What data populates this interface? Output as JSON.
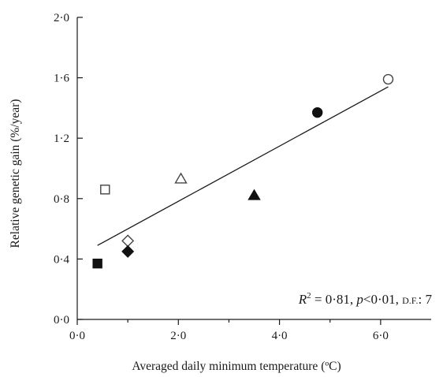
{
  "chart_data": {
    "type": "scatter",
    "xlabel": "Averaged daily minimum temperature (ºC)",
    "ylabel": "Relative genetic gain (%/year)",
    "xlim": [
      0,
      7
    ],
    "ylim": [
      0,
      2
    ],
    "xticks": [
      "0·0",
      "2·0",
      "4·0",
      "6·0"
    ],
    "xtick_values": [
      0,
      2,
      4,
      6
    ],
    "yticks": [
      "0·0",
      "0·4",
      "0·8",
      "1·2",
      "1·6",
      "2·0"
    ],
    "ytick_values": [
      0,
      0.4,
      0.8,
      1.2,
      1.6,
      2.0
    ],
    "points": [
      {
        "x": 0.4,
        "y": 0.37,
        "marker": "square",
        "fill": "filled"
      },
      {
        "x": 0.55,
        "y": 0.86,
        "marker": "square",
        "fill": "open"
      },
      {
        "x": 1.0,
        "y": 0.52,
        "marker": "diamond",
        "fill": "open"
      },
      {
        "x": 1.0,
        "y": 0.45,
        "marker": "diamond",
        "fill": "filled"
      },
      {
        "x": 2.05,
        "y": 0.93,
        "marker": "triangle",
        "fill": "open"
      },
      {
        "x": 3.5,
        "y": 0.82,
        "marker": "triangle",
        "fill": "filled"
      },
      {
        "x": 4.75,
        "y": 1.37,
        "marker": "circle",
        "fill": "filled"
      },
      {
        "x": 6.15,
        "y": 1.59,
        "marker": "circle",
        "fill": "open"
      }
    ],
    "fit_line": {
      "x": [
        0.4,
        6.15
      ],
      "y": [
        0.49,
        1.54
      ]
    },
    "annotation": {
      "r": "R",
      "sup": "2",
      "rest1": " = 0·81, ",
      "p": "p",
      "rest2": "<0·01, ",
      "df": "D.F.",
      "rest3": ": 7"
    },
    "grid": false,
    "legend": "none"
  }
}
